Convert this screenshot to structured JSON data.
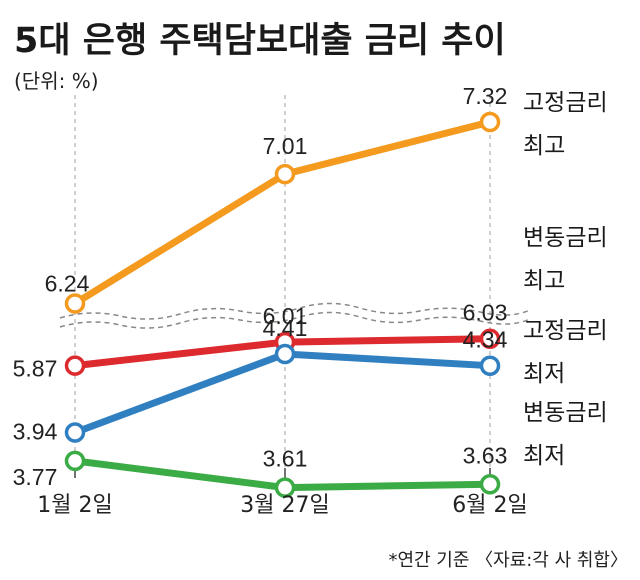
{
  "chart_data": {
    "type": "line",
    "title": "5대 은행 주택담보대출 금리 추이",
    "unit": "(단위: %)",
    "categories": [
      "1월 2일",
      "3월 27일",
      "6월 2일"
    ],
    "series": [
      {
        "name": "고정금리 최고",
        "name_lines": [
          "고정금리",
          "최고"
        ],
        "values": [
          6.24,
          7.01,
          7.32
        ],
        "labels": [
          "6.24",
          "7.01",
          "7.32"
        ],
        "color": "#f39a1f"
      },
      {
        "name": "변동금리 최고",
        "name_lines": [
          "변동금리",
          "최고"
        ],
        "values": [
          5.87,
          6.01,
          6.03
        ],
        "labels": [
          "5.87",
          "6.01",
          "6.03"
        ],
        "color": "#dc2a2f"
      },
      {
        "name": "고정금리 최저",
        "name_lines": [
          "고정금리",
          "최저"
        ],
        "values": [
          3.94,
          4.41,
          4.34
        ],
        "labels": [
          "3.94",
          "4.41",
          "4.34"
        ],
        "color": "#2f7fc1"
      },
      {
        "name": "변동금리 최저",
        "name_lines": [
          "변동금리",
          "최저"
        ],
        "values": [
          3.77,
          3.61,
          3.63
        ],
        "labels": [
          "3.77",
          "3.61",
          "3.63"
        ],
        "color": "#3bab45"
      }
    ],
    "axis_break": true,
    "grid": false,
    "legend": "right"
  },
  "note": "*연간 기준 〈자료:각 사 취합〉"
}
